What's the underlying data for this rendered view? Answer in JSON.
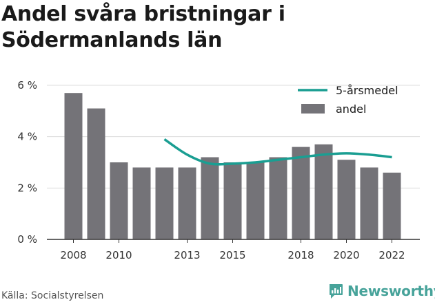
{
  "title": "Andel svåra bristningar i Södermanlands län",
  "source": "Källa: Socialstyrelsen",
  "brand": {
    "name": "Newsworthy",
    "icon": "newsworthy-logo-icon"
  },
  "colors": {
    "bar": "#747378",
    "line": "#1a9e92",
    "grid": "#dcdcdc",
    "axis": "#333333",
    "brand": "#47a39a"
  },
  "chart_data": {
    "type": "bar",
    "categories": [
      "2008",
      "2009",
      "2010",
      "2011",
      "2012",
      "2013",
      "2014",
      "2015",
      "2016",
      "2017",
      "2018",
      "2019",
      "2020",
      "2021",
      "2022"
    ],
    "x_tick_labels": [
      "2008",
      "2010",
      "2013",
      "2015",
      "2018",
      "2020",
      "2022"
    ],
    "y_ticks": [
      0,
      2,
      4,
      6
    ],
    "y_tick_labels": [
      "0 %",
      "2 %",
      "4 %",
      "6 %"
    ],
    "ylim": [
      0,
      6
    ],
    "xlabel": "",
    "ylabel": "",
    "grid": true,
    "legend_position": "top-right",
    "series": [
      {
        "name": "andel",
        "type": "bar",
        "values": [
          5.7,
          5.1,
          3.0,
          2.8,
          2.8,
          2.8,
          3.2,
          3.0,
          3.0,
          3.2,
          3.6,
          3.7,
          3.1,
          2.8,
          2.6
        ]
      },
      {
        "name": "5-årsmedel",
        "type": "line",
        "values": [
          null,
          null,
          null,
          null,
          3.9,
          3.3,
          2.95,
          2.95,
          3.0,
          3.1,
          3.2,
          3.3,
          3.35,
          3.3,
          3.2
        ]
      }
    ]
  }
}
